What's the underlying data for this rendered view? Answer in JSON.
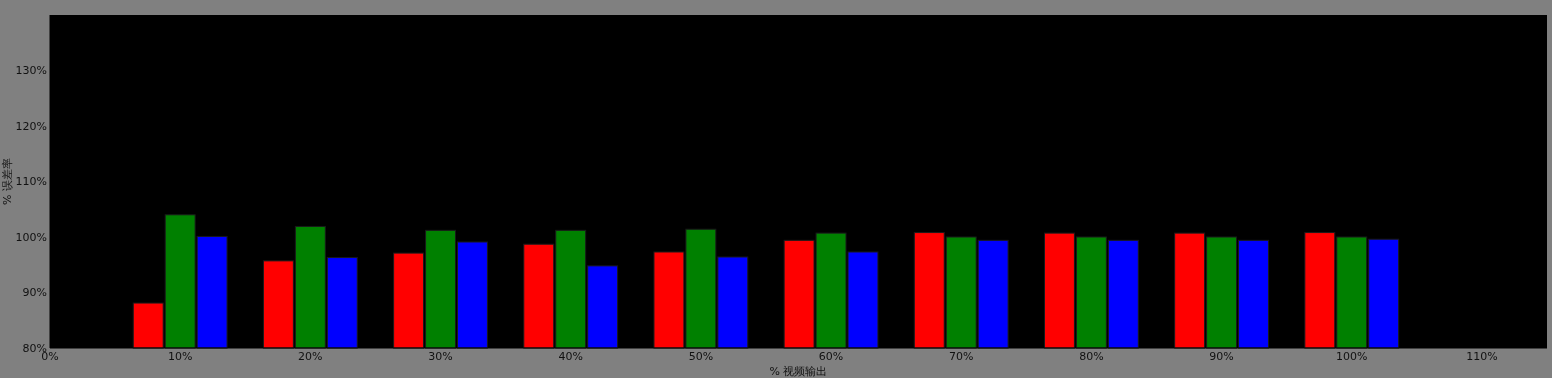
{
  "chart_data": {
    "type": "bar",
    "xlabel": "% 视频输出",
    "ylabel": "% 误差率",
    "x": [
      10,
      20,
      30,
      40,
      50,
      60,
      70,
      80,
      90,
      100
    ],
    "series": [
      {
        "color": "#ff0000",
        "values": [
          88.1,
          95.7,
          97.1,
          98.7,
          97.3,
          99.4,
          100.8,
          100.7,
          100.7,
          100.8
        ]
      },
      {
        "color": "#008000",
        "values": [
          104.0,
          101.9,
          101.2,
          101.2,
          101.4,
          100.7,
          100.0,
          100.0,
          100.0,
          100.0
        ]
      },
      {
        "color": "#0000ff",
        "values": [
          100.1,
          96.3,
          99.1,
          94.8,
          96.4,
          97.3,
          99.4,
          99.4,
          99.4,
          99.6
        ]
      }
    ],
    "xlim": [
      0,
      115
    ],
    "ylim": [
      80,
      140
    ],
    "xticks": [
      {
        "value": 0,
        "label": "0%"
      },
      {
        "value": 10,
        "label": "10%"
      },
      {
        "value": 20,
        "label": "20%"
      },
      {
        "value": 30,
        "label": "30%"
      },
      {
        "value": 40,
        "label": "40%"
      },
      {
        "value": 50,
        "label": "50%"
      },
      {
        "value": 60,
        "label": "60%"
      },
      {
        "value": 70,
        "label": "70%"
      },
      {
        "value": 80,
        "label": "80%"
      },
      {
        "value": 90,
        "label": "90%"
      },
      {
        "value": 100,
        "label": "100%"
      },
      {
        "value": 110,
        "label": "110%"
      }
    ],
    "yticks": [
      {
        "value": 80,
        "label": "80%"
      },
      {
        "value": 90,
        "label": "90%"
      },
      {
        "value": 100,
        "label": "100%"
      },
      {
        "value": 110,
        "label": "110%"
      },
      {
        "value": 120,
        "label": "120%"
      },
      {
        "value": 130,
        "label": "130%"
      }
    ],
    "grid": false
  }
}
